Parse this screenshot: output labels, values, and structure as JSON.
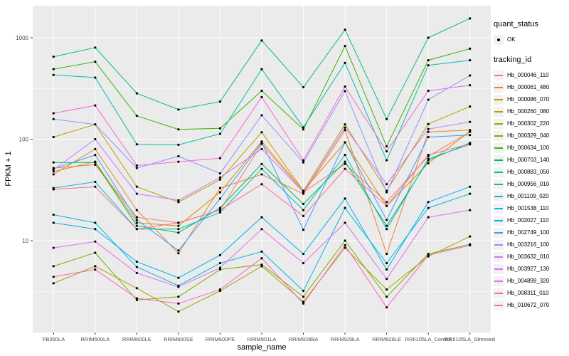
{
  "chart_data": {
    "type": "line",
    "xlabel": "sample_name",
    "ylabel": "FPKM + 1",
    "y_scale": "log10",
    "y_ticks": [
      10,
      100,
      1000
    ],
    "y_minor_ticks": [
      3.16,
      31.6,
      316
    ],
    "ylim": [
      1.24,
      2070
    ],
    "grid": "on",
    "legend_position": "right",
    "point_marker": "black-dot",
    "categories": [
      "PB350LA",
      "RRIM600LA",
      "RRIM600LE",
      "RRIM600SE",
      "RRIM600PE",
      "RRIM901LA",
      "RRIM928BA",
      "RRIM928LA",
      "RRIM928LE",
      "RRII105LA_Control",
      "RRII105LA_Stressed"
    ],
    "series": [
      {
        "name": "Hb_000046_110",
        "color": "#F8766D",
        "values": [
          52,
          56,
          17,
          15,
          20,
          90,
          30,
          57,
          24,
          68,
          118
        ]
      },
      {
        "name": "Hb_000061_480",
        "color": "#EA8331",
        "values": [
          45,
          80,
          20,
          7.5,
          33,
          45,
          29,
          123,
          7.4,
          118,
          123
        ]
      },
      {
        "name": "Hb_000086_070",
        "color": "#D89000",
        "values": [
          48,
          60,
          15,
          14,
          30,
          95,
          31,
          93,
          22,
          58,
          120
        ]
      },
      {
        "name": "Hb_000260_080",
        "color": "#C09B00",
        "values": [
          105,
          140,
          34,
          24,
          40,
          117,
          31,
          140,
          31,
          141,
          210
        ]
      },
      {
        "name": "Hb_000302_220",
        "color": "#A3A500",
        "values": [
          3.8,
          5.6,
          3.4,
          2.0,
          3.2,
          5.6,
          2.5,
          8.5,
          3.3,
          7.0,
          11
        ]
      },
      {
        "name": "Hb_000329_040",
        "color": "#7CAE00",
        "values": [
          5.6,
          7.6,
          2.6,
          2.8,
          5.2,
          5.8,
          2.8,
          10,
          2.8,
          7.4,
          9.2
        ]
      },
      {
        "name": "Hb_000634_100",
        "color": "#39B600",
        "values": [
          490,
          580,
          170,
          125,
          128,
          300,
          125,
          830,
          85,
          600,
          780
        ]
      },
      {
        "name": "Hb_000703_140",
        "color": "#00BB4E",
        "values": [
          59,
          59,
          14,
          12,
          21,
          57,
          23,
          60,
          14,
          62,
          92
        ]
      },
      {
        "name": "Hb_000883_050",
        "color": "#00BF7D",
        "values": [
          650,
          800,
          283,
          196,
          235,
          940,
          325,
          1200,
          158,
          1000,
          1550
        ]
      },
      {
        "name": "Hb_000956_010",
        "color": "#00C1A3",
        "values": [
          430,
          405,
          89,
          88,
          113,
          490,
          131,
          565,
          62,
          535,
          600
        ]
      },
      {
        "name": "Hb_001109_020",
        "color": "#00BFC4",
        "values": [
          33,
          38,
          13,
          13,
          19,
          51,
          20,
          70,
          13,
          64,
          89
        ]
      },
      {
        "name": "Hb_001538_110",
        "color": "#00BAE0",
        "values": [
          18,
          15,
          5.5,
          3.6,
          6.0,
          7.8,
          3.2,
          21,
          6.0,
          21,
          29
        ]
      },
      {
        "name": "Hb_002027_110",
        "color": "#00B0F6",
        "values": [
          15,
          13,
          6.2,
          4.3,
          7.2,
          17,
          7.4,
          26,
          5.2,
          24,
          34
        ]
      },
      {
        "name": "Hb_002749_100",
        "color": "#35A2FF",
        "values": [
          51,
          70,
          16,
          8.0,
          26,
          93,
          12.8,
          93,
          16,
          105,
          110
        ]
      },
      {
        "name": "Hb_003216_100",
        "color": "#9590FF",
        "values": [
          158,
          140,
          52,
          68,
          46,
          172,
          59,
          298,
          30,
          245,
          425
        ]
      },
      {
        "name": "Hb_003632_010",
        "color": "#C77CFF",
        "values": [
          50,
          100,
          29,
          25,
          42,
          80,
          30,
          130,
          36,
          126,
          148
        ]
      },
      {
        "name": "Hb_003927_130",
        "color": "#E76BF3",
        "values": [
          8.5,
          9.8,
          4.8,
          3.5,
          5.4,
          13,
          6.0,
          15,
          4.2,
          17,
          20
        ]
      },
      {
        "name": "Hb_004899_320",
        "color": "#FA62DB",
        "values": [
          180,
          215,
          55,
          60,
          65,
          260,
          62,
          330,
          76,
          300,
          340
        ]
      },
      {
        "name": "Hb_008311_010",
        "color": "#FF62BC",
        "values": [
          4.4,
          5.2,
          2.7,
          2.4,
          3.3,
          6.7,
          2.4,
          9.0,
          2.2,
          7.2,
          9.0
        ]
      },
      {
        "name": "Hb_010672_070",
        "color": "#FF6A98",
        "values": [
          32,
          34,
          13,
          15,
          20,
          36,
          17.5,
          51,
          22,
          70,
          90
        ]
      }
    ],
    "legend": {
      "quant_status_title": "quant_status",
      "ok_label": "OK",
      "tracking_id_title": "tracking_id"
    },
    "colors": {
      "panel_bg": "#EBEBEB",
      "grid": "#FFFFFF",
      "tick_text": "#4D4D4D",
      "axis_title": "#000000",
      "point": "#000000",
      "legend_key_bg": "#F2F2F2"
    }
  }
}
